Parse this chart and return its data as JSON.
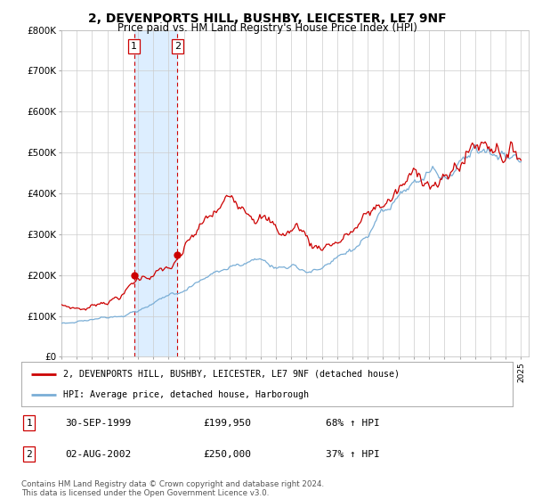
{
  "title": "2, DEVENPORTS HILL, BUSHBY, LEICESTER, LE7 9NF",
  "subtitle": "Price paid vs. HM Land Registry's House Price Index (HPI)",
  "ylim": [
    0,
    800000
  ],
  "xlim_start": 1995.0,
  "xlim_end": 2025.5,
  "sale1": {
    "date_num": 1999.75,
    "price": 199950,
    "label": "1"
  },
  "sale2": {
    "date_num": 2002.58,
    "price": 250000,
    "label": "2"
  },
  "legend_line1": "2, DEVENPORTS HILL, BUSHBY, LEICESTER, LE7 9NF (detached house)",
  "legend_line2": "HPI: Average price, detached house, Harborough",
  "footnote": "Contains HM Land Registry data © Crown copyright and database right 2024.\nThis data is licensed under the Open Government Licence v3.0.",
  "line_color_red": "#cc0000",
  "line_color_blue": "#7aaed6",
  "highlight_fill": "#ddeeff",
  "vline_color": "#cc0000",
  "background_color": "#ffffff",
  "grid_color": "#cccccc",
  "title_fontsize": 10,
  "subtitle_fontsize": 8.5
}
